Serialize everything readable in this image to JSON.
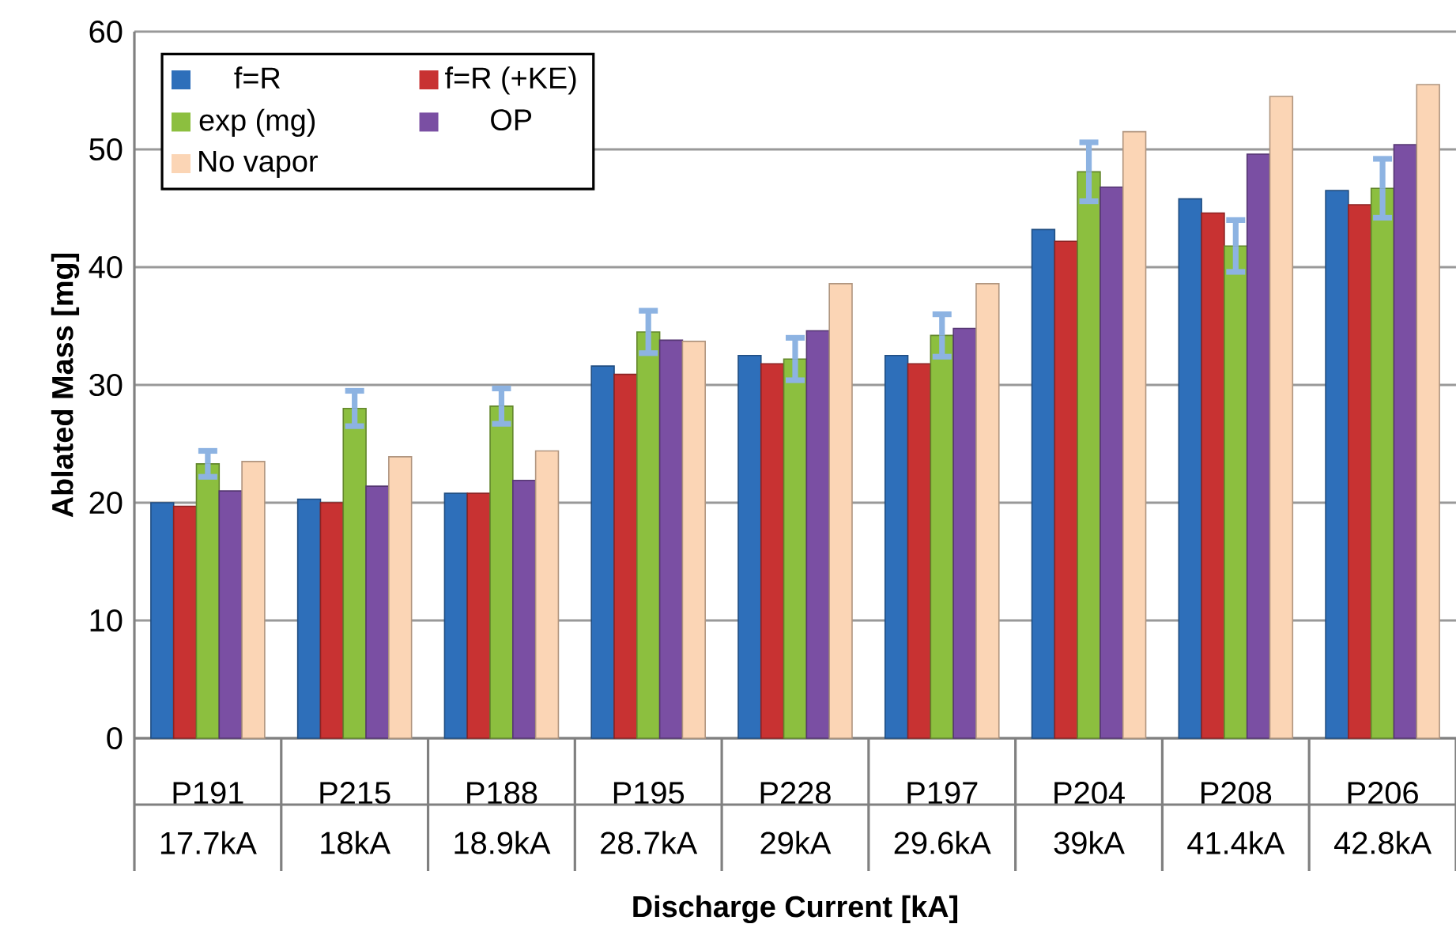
{
  "chart_data": {
    "type": "bar",
    "xlabel": "Discharge Current [kA]",
    "ylabel": "Ablated Mass [mg]",
    "categories": [
      "P191",
      "P215",
      "P188",
      "P195",
      "P228",
      "P197",
      "P204",
      "P208",
      "P206"
    ],
    "annotations": [
      "17.7kA",
      "18kA",
      "18.9kA",
      "28.7kA",
      "29kA",
      "29.6kA",
      "39kA",
      "41.4kA",
      "42.8kA"
    ],
    "series": [
      {
        "name": "f=R",
        "color": "#2e6fba",
        "values": [
          20.0,
          20.3,
          20.8,
          31.6,
          32.5,
          32.5,
          43.2,
          45.8,
          46.5
        ]
      },
      {
        "name": "f=R (+KE)",
        "color": "#c83232",
        "values": [
          19.7,
          20.0,
          20.8,
          30.9,
          31.8,
          31.8,
          42.2,
          44.6,
          45.3
        ]
      },
      {
        "name": "exp (mg)",
        "color": "#8cbf3f",
        "values": [
          23.3,
          28.0,
          28.2,
          34.5,
          32.2,
          34.2,
          48.1,
          41.8,
          46.7
        ],
        "errors": [
          1.1,
          1.5,
          1.5,
          1.8,
          1.8,
          1.8,
          2.5,
          2.2,
          2.5
        ]
      },
      {
        "name": "OP",
        "color": "#7a4fa3",
        "values": [
          21.0,
          21.4,
          21.9,
          33.8,
          34.6,
          34.8,
          46.8,
          49.6,
          50.4
        ]
      },
      {
        "name": "No vapor",
        "color": "#fbd5b5",
        "values": [
          23.5,
          23.9,
          24.4,
          33.7,
          38.6,
          38.6,
          51.5,
          54.5,
          55.5
        ]
      }
    ],
    "ylim": [
      0,
      60
    ],
    "yticks": [
      0,
      10,
      20,
      30,
      40,
      50,
      60
    ],
    "grid": "y",
    "legend": "top left"
  }
}
